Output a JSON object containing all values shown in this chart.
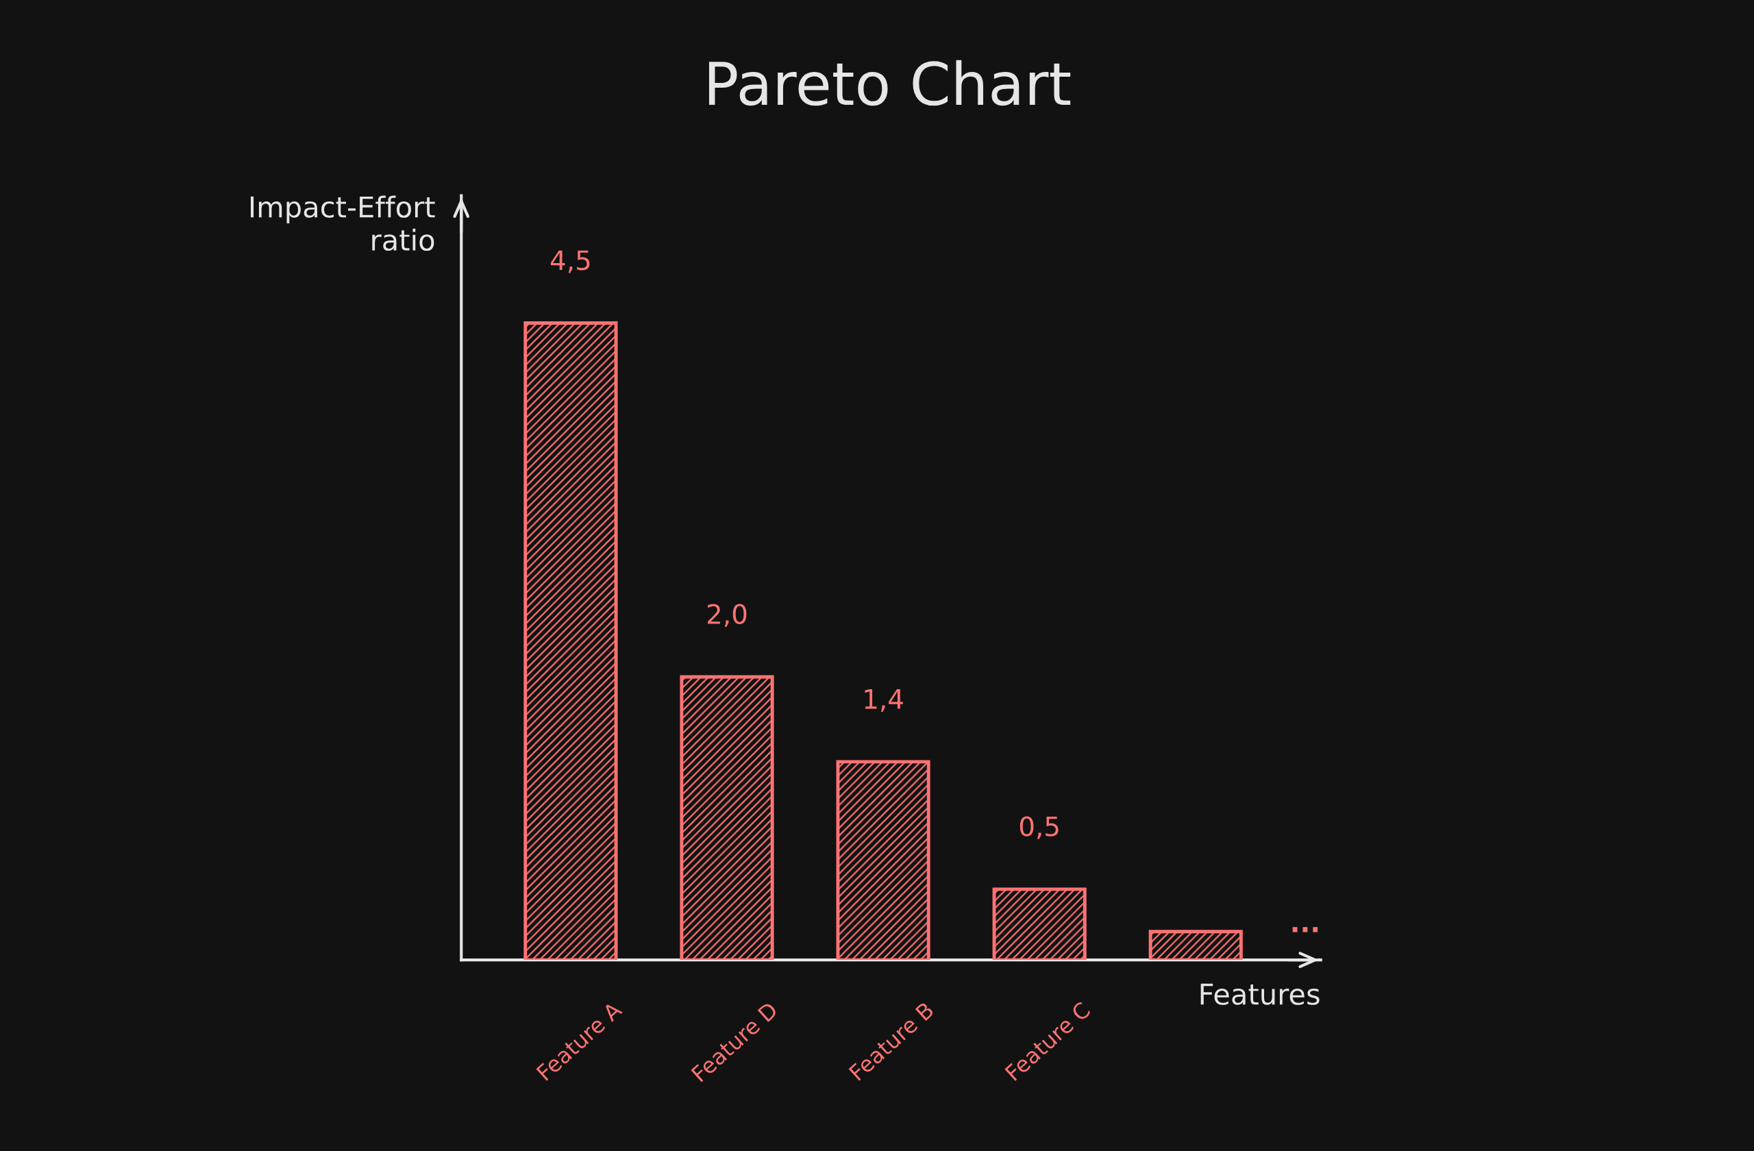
{
  "chart_data": {
    "type": "bar",
    "title": "Pareto Chart",
    "xlabel": "Features",
    "ylabel": "Impact-Effort\nratio",
    "categories": [
      "Feature A",
      "Feature D",
      "Feature B",
      "Feature C",
      null
    ],
    "values": [
      4.5,
      2.0,
      1.4,
      0.5,
      0.2
    ],
    "value_labels": [
      "4,5",
      "2,0",
      "1,4",
      "0,5",
      null
    ],
    "color": "#ff7373",
    "annotations": [
      "..."
    ],
    "tick_labels": "x"
  }
}
